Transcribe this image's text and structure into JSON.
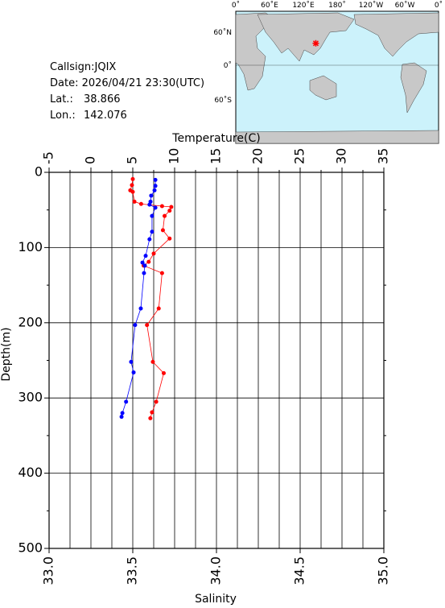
{
  "info": {
    "callsign": "Callsign:JQIX",
    "date": "Date:  2026/04/21 23:30(UTC)",
    "lat_label": "Lat.:",
    "lat": 38.866,
    "lon_label": "Lon.:",
    "lon": 142.076
  },
  "map": {
    "lon_labels": [
      "0˚",
      "60˚E",
      "120˚E",
      "180˚",
      "120˚W",
      "60˚W",
      "0˚"
    ],
    "lat_labels": [
      "60˚N",
      "0˚",
      "60˚S"
    ],
    "marker_color": "#ff0000"
  },
  "chart_data": {
    "type": "profile",
    "ylabel": "Depth(m)",
    "ylim": [
      0,
      500
    ],
    "yticks": [
      0,
      100,
      200,
      300,
      400,
      500
    ],
    "yminor": [
      50,
      150,
      250,
      350,
      450
    ],
    "grid": true,
    "temperature": {
      "label": "Temperature(C)",
      "color": "#ff0000",
      "xlim": [
        -5,
        35
      ],
      "xticks": [
        -5,
        0,
        5,
        10,
        15,
        20,
        25,
        30,
        35
      ],
      "xminor": [
        -2.5,
        2.5,
        7.5,
        12.5,
        17.5,
        22.5,
        27.5,
        32.5
      ],
      "x": [
        5.0,
        4.9,
        4.7,
        5.0,
        5.2,
        6.0,
        8.5,
        9.6,
        9.4,
        8.8,
        8.6,
        9.4,
        7.5,
        6.9,
        6.3,
        8.5,
        8.1,
        6.7,
        7.4,
        8.7,
        7.8,
        7.3,
        7.1
      ],
      "values": [
        9,
        17,
        24,
        26,
        39,
        42,
        45,
        46,
        51,
        58,
        77,
        88,
        108,
        119,
        124,
        134,
        181,
        203,
        252,
        267,
        305,
        319,
        327
      ]
    },
    "salinity": {
      "label": "Salinity",
      "color": "#0000ff",
      "xlim": [
        33,
        35
      ],
      "xticks": [
        {
          "value": 33,
          "label": "33.0"
        },
        {
          "value": 33.5,
          "label": "33.5"
        },
        {
          "value": 34,
          "label": "34.0"
        },
        {
          "value": 34.5,
          "label": "34.5"
        },
        {
          "value": 35,
          "label": "35.0"
        }
      ],
      "x": [
        33.635,
        33.635,
        33.63,
        33.61,
        33.606,
        33.6,
        33.635,
        33.615,
        33.615,
        33.6,
        33.577,
        33.558,
        33.572,
        33.567,
        33.548,
        33.514,
        33.49,
        33.505,
        33.46,
        33.438,
        33.433
      ],
      "values": [
        10,
        18,
        24,
        31,
        39,
        43,
        47,
        58,
        79,
        89,
        111,
        120,
        124,
        134,
        181,
        203,
        252,
        266,
        305,
        320,
        325
      ]
    }
  }
}
